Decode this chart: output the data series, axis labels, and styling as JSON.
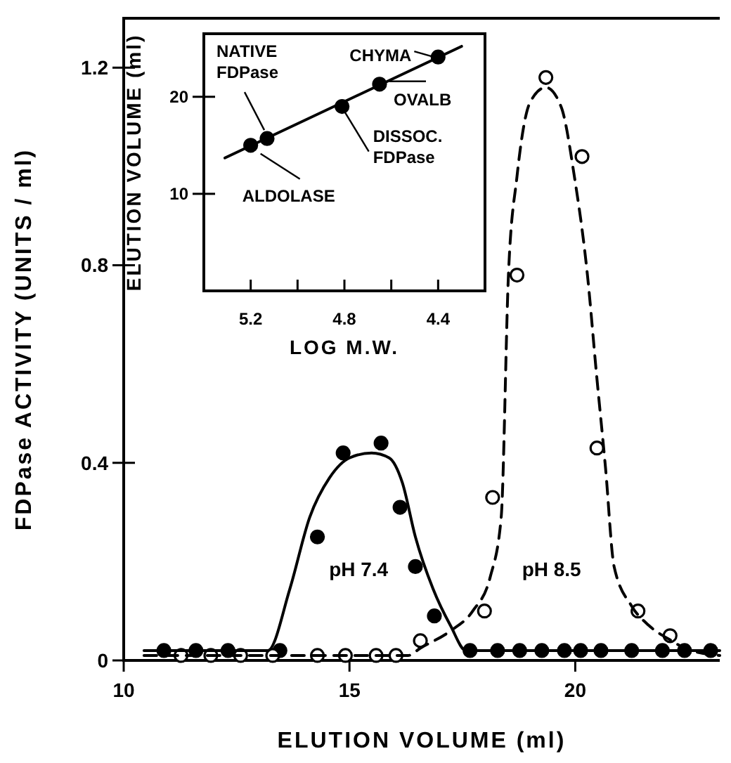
{
  "chart_data": [
    {
      "type": "scatter",
      "xlabel": "ELUTION VOLUME (ml)",
      "ylabel": "FDPase ACTIVITY (UNITS / ml)",
      "xlim": [
        10,
        23.2
      ],
      "ylim": [
        0,
        1.3
      ],
      "xticks": [
        10,
        15,
        20
      ],
      "yticks": [
        0,
        0.4,
        0.8,
        1.2
      ],
      "marker": "circle",
      "series": [
        {
          "name": "pH 7.4",
          "color": "#000000",
          "x": [
            10.89,
            11.6,
            12.31,
            13.46,
            14.29,
            14.86,
            15.7,
            16.12,
            16.46,
            16.88,
            17.67,
            18.28,
            18.77,
            19.26,
            19.76,
            20.12,
            20.57,
            21.25,
            21.93,
            22.42,
            23.0
          ],
          "values": [
            0.02,
            0.02,
            0.02,
            0.02,
            0.25,
            0.42,
            0.44,
            0.31,
            0.19,
            0.09,
            0.02,
            0.02,
            0.02,
            0.02,
            0.02,
            0.02,
            0.02,
            0.02,
            0.02,
            0.02,
            0.02
          ]
        },
        {
          "name": "pH 8.5",
          "color": "#ffffff",
          "x": [
            11.27,
            11.93,
            12.59,
            13.3,
            14.29,
            14.91,
            15.59,
            16.03,
            16.57,
            17.99,
            18.17,
            18.71,
            19.35,
            20.15,
            20.48,
            21.39,
            22.1
          ],
          "values": [
            0.01,
            0.01,
            0.01,
            0.01,
            0.01,
            0.01,
            0.01,
            0.01,
            0.04,
            0.1,
            0.33,
            0.78,
            1.18,
            1.02,
            0.43,
            0.1,
            0.05
          ]
        },
        {
          "type": "line",
          "color": "#000000",
          "line_style": "solid",
          "marker": "none",
          "x": [
            10.45,
            13.19,
            13.68,
            14.12,
            14.56,
            15.0,
            15.49,
            15.88,
            16.17,
            16.46,
            16.85,
            17.24,
            17.58,
            23.2
          ],
          "values": [
            0.02,
            0.02,
            0.145,
            0.29,
            0.37,
            0.41,
            0.42,
            0.41,
            0.36,
            0.25,
            0.145,
            0.07,
            0.02,
            0.02
          ]
        },
        {
          "type": "line",
          "color": "#000000",
          "line_style": "dashed",
          "marker": "none",
          "x": [
            10.45,
            16.3,
            16.57,
            17.24,
            17.73,
            18.12,
            18.36,
            18.52,
            18.71,
            19.0,
            19.35,
            19.69,
            19.98,
            20.27,
            20.47,
            20.67,
            20.86,
            21.25,
            21.64,
            22.13,
            22.42,
            23.2
          ],
          "values": [
            0.01,
            0.01,
            0.025,
            0.06,
            0.1,
            0.17,
            0.29,
            0.78,
            0.98,
            1.13,
            1.16,
            1.12,
            0.98,
            0.78,
            0.58,
            0.39,
            0.19,
            0.11,
            0.07,
            0.04,
            0.025,
            0.01
          ]
        }
      ]
    },
    {
      "type": "scatter",
      "xlabel": "LOG M.W.",
      "ylabel": "ELUTION VOLUME (ml)",
      "xlim": [
        5.4,
        4.2
      ],
      "ylim": [
        0,
        26.5
      ],
      "xticks": [
        5.2,
        {
          "value": 5,
          "label": null
        },
        4.8,
        {
          "value": 4.6,
          "label": null
        },
        4.4
      ],
      "yticks": [
        10,
        20
      ],
      "marker": "circle",
      "annotations": [
        {
          "text": "NATIVE\nFDPase",
          "x": 5.13,
          "y": 15.7
        },
        {
          "text": "ALDOLASE",
          "x": 5.2,
          "y": 15
        },
        {
          "text": "DISSOC.\nFDPase",
          "x": 4.81,
          "y": 19
        },
        {
          "text": "OVALB",
          "x": 4.65,
          "y": 21.3
        },
        {
          "text": "CHYMA",
          "x": 4.4,
          "y": 24.1
        }
      ],
      "series": [
        {
          "color": "#000000",
          "x": [
            5.2,
            5.13,
            4.81,
            4.65,
            4.4
          ],
          "values": [
            15,
            15.7,
            19,
            21.3,
            24.1
          ]
        },
        {
          "type": "line",
          "color": "#000000",
          "line_style": "solid",
          "marker": "none",
          "x": [
            5.31,
            4.3
          ],
          "values": [
            13.7,
            25.2
          ]
        }
      ]
    }
  ]
}
